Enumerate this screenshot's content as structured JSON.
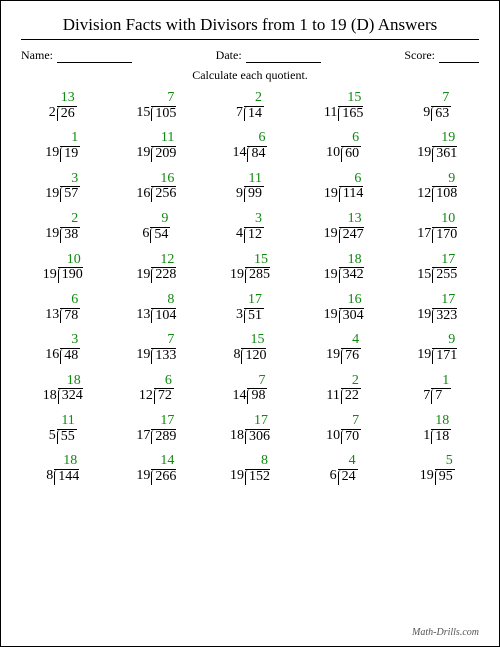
{
  "title": "Division Facts with Divisors from 1 to 19 (D) Answers",
  "meta": {
    "name_label": "Name:",
    "date_label": "Date:",
    "score_label": "Score:"
  },
  "instruction": "Calculate each quotient.",
  "footer": "Math-Drills.com",
  "quotient_color": "#0f8a0f",
  "problems": [
    {
      "divisor": 2,
      "dividend": 26,
      "quotient": 13
    },
    {
      "divisor": 15,
      "dividend": 105,
      "quotient": 7
    },
    {
      "divisor": 7,
      "dividend": 14,
      "quotient": 2
    },
    {
      "divisor": 11,
      "dividend": 165,
      "quotient": 15
    },
    {
      "divisor": 9,
      "dividend": 63,
      "quotient": 7
    },
    {
      "divisor": 19,
      "dividend": 19,
      "quotient": 1
    },
    {
      "divisor": 19,
      "dividend": 209,
      "quotient": 11
    },
    {
      "divisor": 14,
      "dividend": 84,
      "quotient": 6
    },
    {
      "divisor": 10,
      "dividend": 60,
      "quotient": 6
    },
    {
      "divisor": 19,
      "dividend": 361,
      "quotient": 19
    },
    {
      "divisor": 19,
      "dividend": 57,
      "quotient": 3
    },
    {
      "divisor": 16,
      "dividend": 256,
      "quotient": 16
    },
    {
      "divisor": 9,
      "dividend": 99,
      "quotient": 11
    },
    {
      "divisor": 19,
      "dividend": 114,
      "quotient": 6
    },
    {
      "divisor": 12,
      "dividend": 108,
      "quotient": 9
    },
    {
      "divisor": 19,
      "dividend": 38,
      "quotient": 2
    },
    {
      "divisor": 6,
      "dividend": 54,
      "quotient": 9
    },
    {
      "divisor": 4,
      "dividend": 12,
      "quotient": 3
    },
    {
      "divisor": 19,
      "dividend": 247,
      "quotient": 13
    },
    {
      "divisor": 17,
      "dividend": 170,
      "quotient": 10
    },
    {
      "divisor": 19,
      "dividend": 190,
      "quotient": 10
    },
    {
      "divisor": 19,
      "dividend": 228,
      "quotient": 12
    },
    {
      "divisor": 19,
      "dividend": 285,
      "quotient": 15
    },
    {
      "divisor": 19,
      "dividend": 342,
      "quotient": 18
    },
    {
      "divisor": 15,
      "dividend": 255,
      "quotient": 17
    },
    {
      "divisor": 13,
      "dividend": 78,
      "quotient": 6
    },
    {
      "divisor": 13,
      "dividend": 104,
      "quotient": 8
    },
    {
      "divisor": 3,
      "dividend": 51,
      "quotient": 17
    },
    {
      "divisor": 19,
      "dividend": 304,
      "quotient": 16
    },
    {
      "divisor": 19,
      "dividend": 323,
      "quotient": 17
    },
    {
      "divisor": 16,
      "dividend": 48,
      "quotient": 3
    },
    {
      "divisor": 19,
      "dividend": 133,
      "quotient": 7
    },
    {
      "divisor": 8,
      "dividend": 120,
      "quotient": 15
    },
    {
      "divisor": 19,
      "dividend": 76,
      "quotient": 4
    },
    {
      "divisor": 19,
      "dividend": 171,
      "quotient": 9
    },
    {
      "divisor": 18,
      "dividend": 324,
      "quotient": 18
    },
    {
      "divisor": 12,
      "dividend": 72,
      "quotient": 6
    },
    {
      "divisor": 14,
      "dividend": 98,
      "quotient": 7
    },
    {
      "divisor": 11,
      "dividend": 22,
      "quotient": 2
    },
    {
      "divisor": 7,
      "dividend": 7,
      "quotient": 1
    },
    {
      "divisor": 5,
      "dividend": 55,
      "quotient": 11
    },
    {
      "divisor": 17,
      "dividend": 289,
      "quotient": 17
    },
    {
      "divisor": 18,
      "dividend": 306,
      "quotient": 17
    },
    {
      "divisor": 10,
      "dividend": 70,
      "quotient": 7
    },
    {
      "divisor": 1,
      "dividend": 18,
      "quotient": 18
    },
    {
      "divisor": 8,
      "dividend": 144,
      "quotient": 18
    },
    {
      "divisor": 19,
      "dividend": 266,
      "quotient": 14
    },
    {
      "divisor": 19,
      "dividend": 152,
      "quotient": 8
    },
    {
      "divisor": 6,
      "dividend": 24,
      "quotient": 4
    },
    {
      "divisor": 19,
      "dividend": 95,
      "quotient": 5
    }
  ]
}
